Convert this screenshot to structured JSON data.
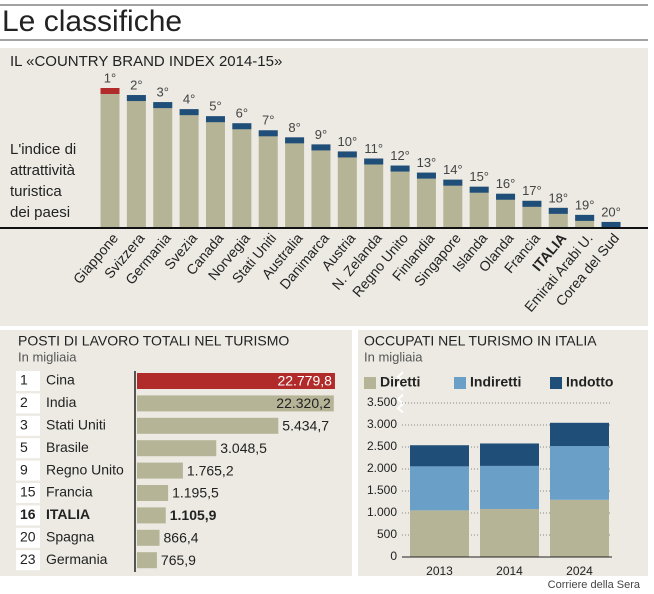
{
  "title": "Le classifiche",
  "source": "Corriere della Sera",
  "chart_data": [
    {
      "type": "rank_bar",
      "title": "IL «COUNTRY BRAND INDEX 2014-15»",
      "annotation": [
        "L'indice di",
        "attrattività",
        "turistica",
        "dei paesi"
      ],
      "categories": [
        "Giappone",
        "Svizzera",
        "Germania",
        "Svezia",
        "Canada",
        "Norvegia",
        "Stati Uniti",
        "Australia",
        "Danimarca",
        "Austria",
        "N. Zelanda",
        "Regno Unito",
        "Finlandia",
        "Singapore",
        "Islanda",
        "Olanda",
        "Francia",
        "ITALIA",
        "Emirati Arabi U.",
        "Corea del Sud"
      ],
      "values": [
        1,
        2,
        3,
        4,
        5,
        6,
        7,
        8,
        9,
        10,
        11,
        12,
        13,
        14,
        15,
        16,
        17,
        18,
        19,
        20
      ],
      "value_labels": [
        "1°",
        "2°",
        "3°",
        "4°",
        "5°",
        "6°",
        "7°",
        "8°",
        "9°",
        "10°",
        "11°",
        "12°",
        "13°",
        "14°",
        "15°",
        "16°",
        "17°",
        "18°",
        "19°",
        "20°"
      ],
      "color": "#b6b497",
      "cap_color": "#1f4e79",
      "first_cap_color": "#b22b2b",
      "emphasis_index": 17
    },
    {
      "type": "hbar",
      "title": "POSTI DI LAVORO TOTALI NEL TURISMO",
      "subtitle": "In migliaia",
      "ranks": [
        1,
        2,
        3,
        5,
        9,
        15,
        16,
        20,
        23
      ],
      "categories": [
        "Cina",
        "India",
        "Stati Uniti",
        "Brasile",
        "Regno Unito",
        "Francia",
        "ITALIA",
        "Spagna",
        "Germania"
      ],
      "values": [
        22779.8,
        22320.2,
        5434.7,
        3048.5,
        1765.2,
        1195.5,
        1105.9,
        866.4,
        765.9
      ],
      "value_labels": [
        "22.779,8",
        "22.320,2",
        "5.434,7",
        "3.048,5",
        "1.765,2",
        "1.195,5",
        "1.105,9",
        "866,4",
        "765,9"
      ],
      "color": "#b6b497",
      "first_color": "#b22b2b",
      "axis_break": 6000,
      "emphasis_index": 6
    },
    {
      "type": "stacked_bar",
      "title": "OCCUPATI NEL TURISMO IN ITALIA",
      "subtitle": "In migliaia",
      "categories": [
        "2013",
        "2014",
        "2024"
      ],
      "series": [
        {
          "name": "Diretti",
          "color": "#b6b497",
          "values": [
            1060,
            1090,
            1300
          ]
        },
        {
          "name": "Indiretti",
          "color": "#6a9fc8",
          "values": [
            1000,
            980,
            1220
          ]
        },
        {
          "name": "Indotto",
          "color": "#1f4e79",
          "values": [
            480,
            510,
            530
          ]
        }
      ],
      "ylim": [
        0,
        3500
      ],
      "yticks": [
        0,
        500,
        {
          "value": 1000,
          "label": "1.000"
        },
        {
          "value": 1500,
          "label": "1.500"
        },
        {
          "value": 2000,
          "label": "2.000"
        },
        {
          "value": 2500,
          "label": "2.500"
        },
        {
          "value": 3000,
          "label": "3.000"
        },
        {
          "value": 3500,
          "label": "3.500"
        }
      ],
      "grid": true
    }
  ]
}
